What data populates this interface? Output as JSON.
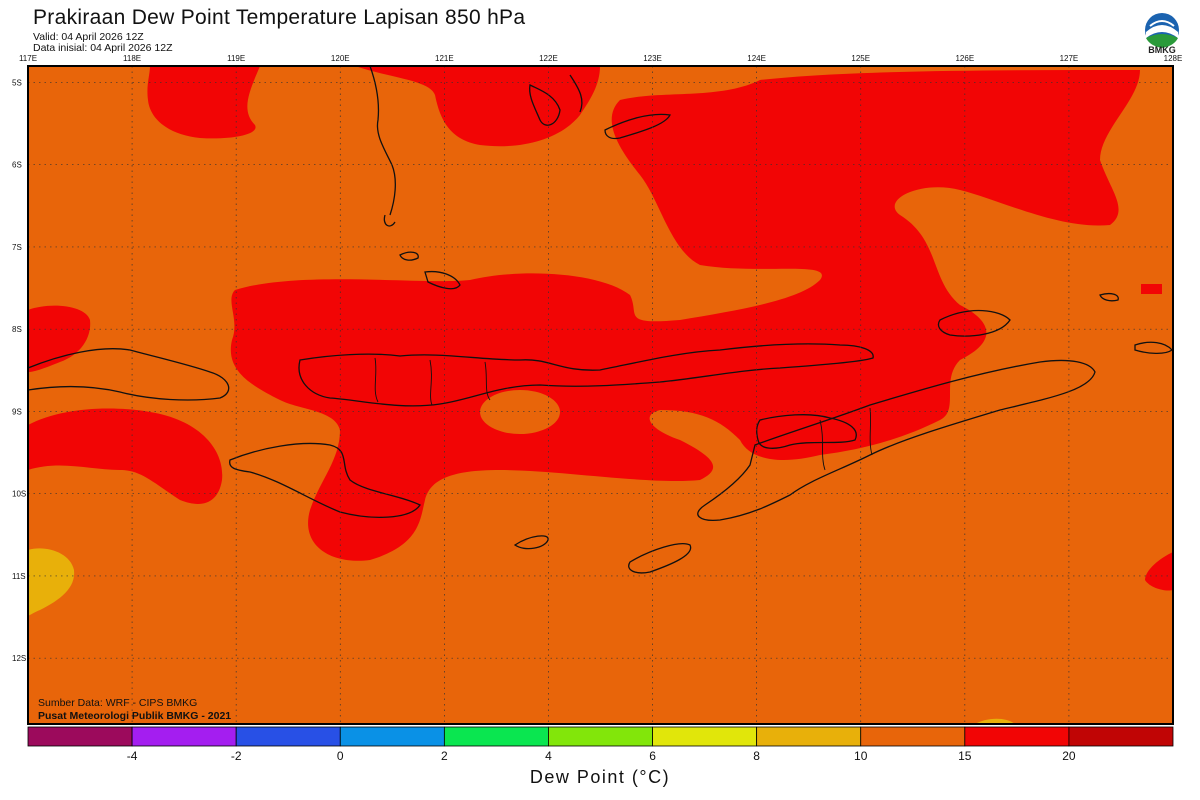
{
  "header": {
    "title": "Prakiraan Dew Point Temperature Lapisan 850 hPa",
    "valid": "Valid: 04 April 2026 12Z",
    "initial": "Data inisial: 04 April 2026 12Z"
  },
  "logo": {
    "text": "BMKG",
    "icon": "bmkg-logo-icon"
  },
  "map": {
    "lon_labels": [
      "117E",
      "118E",
      "119E",
      "120E",
      "121E",
      "122E",
      "123E",
      "124E",
      "125E",
      "126E",
      "127E",
      "128E"
    ],
    "lat_labels": [
      "5S",
      "6S",
      "7S",
      "8S",
      "9S",
      "10S",
      "11S",
      "12S"
    ],
    "lon_range": [
      117,
      128
    ],
    "lat_range": [
      -4.8,
      -12.8
    ],
    "grid": "dotted",
    "background_class_color": "#e8650a",
    "regions": [
      {
        "name": "dew-point-15-20",
        "color": "#f20505"
      },
      {
        "name": "dew-point-8-10",
        "color": "#e8b00a"
      }
    ]
  },
  "footer": {
    "source_line1": "Sumber Data: WRF - CIPS BMKG",
    "source_line2": "Pusat Meteorologi Publik BMKG - 2021"
  },
  "colorbar": {
    "title": "Dew Point (°C)",
    "bins": [
      {
        "color": "#9c0a5c",
        "label": "-4"
      },
      {
        "color": "#a41ef0",
        "label": "-2"
      },
      {
        "color": "#2850e6",
        "label": "0"
      },
      {
        "color": "#0a91e6",
        "label": "2"
      },
      {
        "color": "#0ae650",
        "label": "4"
      },
      {
        "color": "#82e60a",
        "label": "6"
      },
      {
        "color": "#e1e60a",
        "label": "8"
      },
      {
        "color": "#e8b00a",
        "label": "10"
      },
      {
        "color": "#e8650a",
        "label": "15"
      },
      {
        "color": "#f20505",
        "label": "20"
      },
      {
        "color": "#c00505",
        "label": ""
      }
    ]
  }
}
